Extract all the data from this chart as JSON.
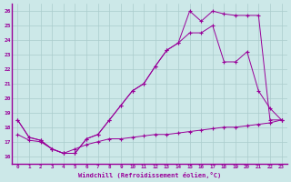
{
  "xlabel": "Windchill (Refroidissement éolien,°C)",
  "background_color": "#cce8e8",
  "line_color": "#990099",
  "grid_color": "#aacccc",
  "xlim": [
    -0.5,
    23.5
  ],
  "ylim": [
    15.5,
    26.5
  ],
  "xticks": [
    0,
    1,
    2,
    3,
    4,
    5,
    6,
    7,
    8,
    9,
    10,
    11,
    12,
    13,
    14,
    15,
    16,
    17,
    18,
    19,
    20,
    21,
    22,
    23
  ],
  "yticks": [
    16,
    17,
    18,
    19,
    20,
    21,
    22,
    23,
    24,
    25,
    26
  ],
  "series": [
    {
      "x": [
        0,
        1,
        2,
        3,
        4,
        5,
        6,
        7,
        8,
        9,
        10,
        11,
        12,
        13,
        14,
        15,
        16,
        17,
        18,
        19,
        20,
        21,
        22,
        23
      ],
      "y": [
        18.5,
        17.3,
        17.1,
        16.5,
        16.2,
        16.2,
        17.2,
        17.5,
        18.5,
        19.5,
        20.5,
        21.0,
        22.2,
        23.3,
        23.8,
        26.0,
        25.3,
        26.0,
        25.8,
        25.7,
        25.7,
        25.7,
        18.5,
        18.5
      ]
    },
    {
      "x": [
        0,
        1,
        2,
        3,
        4,
        5,
        6,
        7,
        8,
        9,
        10,
        11,
        12,
        13,
        14,
        15,
        16,
        17,
        18,
        19,
        20,
        21,
        22,
        23
      ],
      "y": [
        18.5,
        17.3,
        17.1,
        16.5,
        16.2,
        16.2,
        17.2,
        17.5,
        18.5,
        19.5,
        20.5,
        21.0,
        22.2,
        23.3,
        23.8,
        24.5,
        24.5,
        25.0,
        22.5,
        22.5,
        23.2,
        20.5,
        19.3,
        18.5
      ]
    },
    {
      "x": [
        0,
        1,
        2,
        3,
        4,
        5,
        6,
        7,
        8,
        9,
        10,
        11,
        12,
        13,
        14,
        15,
        16,
        17,
        18,
        19,
        20,
        21,
        22,
        23
      ],
      "y": [
        17.5,
        17.1,
        17.0,
        16.5,
        16.2,
        16.5,
        16.8,
        17.0,
        17.2,
        17.2,
        17.3,
        17.4,
        17.5,
        17.5,
        17.6,
        17.7,
        17.8,
        17.9,
        18.0,
        18.0,
        18.1,
        18.2,
        18.3,
        18.5
      ]
    }
  ]
}
